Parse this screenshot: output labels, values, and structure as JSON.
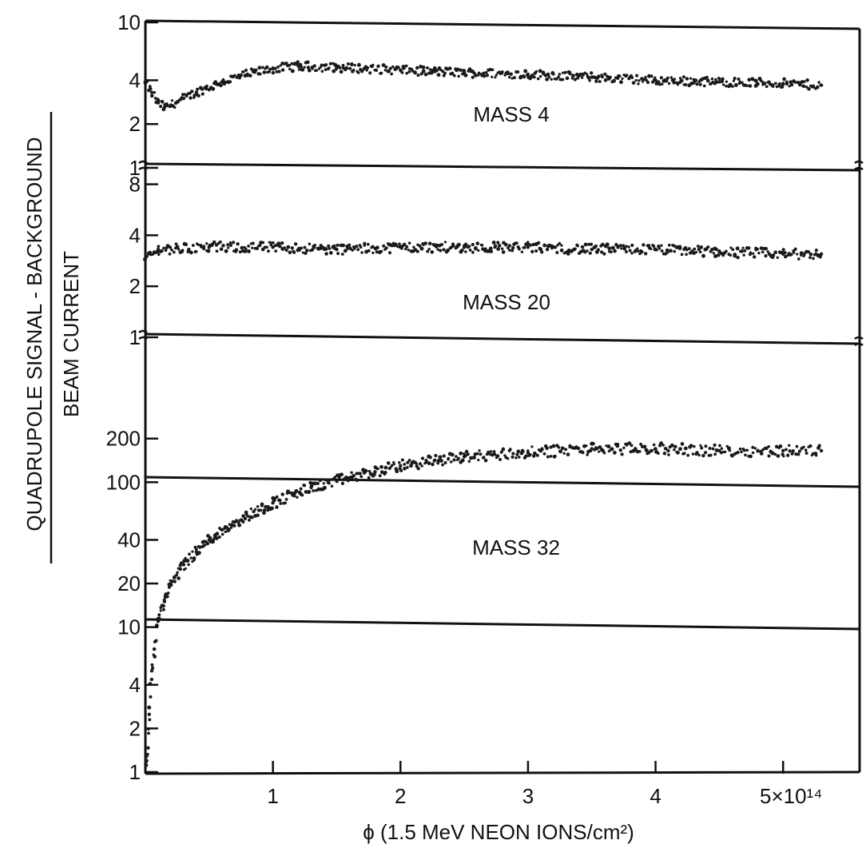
{
  "chart_data": {
    "type": "scatter",
    "ylabel_numerator": "QUADRUPOLE SIGNAL - BACKGROUND",
    "ylabel_denominator": "BEAM CURRENT",
    "xlabel": "ϕ (1.5 MeV NEON IONS/cm²)",
    "xlim": [
      0,
      5.6
    ],
    "x_ticks": [
      {
        "value": 1,
        "label": "1"
      },
      {
        "value": 2,
        "label": "2"
      },
      {
        "value": 3,
        "label": "3"
      },
      {
        "value": 4,
        "label": "4"
      },
      {
        "value": 5,
        "label": "5×10¹⁴"
      }
    ],
    "y_scale": "log",
    "panels": [
      {
        "label": "MASS 4",
        "ylim": [
          1,
          10
        ],
        "y_ticks": [
          {
            "value": 1,
            "label": "1"
          },
          {
            "value": 2,
            "label": "2"
          },
          {
            "value": 4,
            "label": "4"
          },
          {
            "value": 10,
            "label": "10"
          }
        ],
        "series": {
          "x": [
            0.0,
            0.05,
            0.1,
            0.15,
            0.2,
            0.3,
            0.4,
            0.6,
            0.8,
            1.0,
            1.2,
            1.5,
            2.0,
            2.5,
            3.0,
            3.5,
            4.0,
            4.5,
            5.0,
            5.3
          ],
          "y": [
            3.8,
            3.3,
            2.8,
            2.6,
            2.7,
            3.0,
            3.3,
            3.9,
            4.4,
            4.8,
            5.0,
            4.9,
            4.7,
            4.5,
            4.4,
            4.2,
            4.0,
            3.9,
            3.8,
            3.7
          ]
        }
      },
      {
        "label": "MASS 20",
        "ylim": [
          1,
          10
        ],
        "y_ticks": [
          {
            "value": 1,
            "label": "1"
          },
          {
            "value": 2,
            "label": "2"
          },
          {
            "value": 4,
            "label": "4"
          },
          {
            "value": 8,
            "label": "8"
          }
        ],
        "series": {
          "x": [
            0.0,
            0.1,
            0.5,
            1.0,
            1.5,
            2.0,
            2.5,
            3.0,
            3.5,
            4.0,
            4.5,
            5.0,
            5.3
          ],
          "y": [
            2.9,
            3.3,
            3.4,
            3.4,
            3.3,
            3.4,
            3.4,
            3.4,
            3.3,
            3.3,
            3.2,
            3.1,
            3.1
          ]
        }
      },
      {
        "label": "MASS 32",
        "ylim": [
          1,
          1000
        ],
        "y_ticks": [
          {
            "value": 1,
            "label": "1"
          },
          {
            "value": 2,
            "label": "2"
          },
          {
            "value": 4,
            "label": "4"
          },
          {
            "value": 10,
            "label": "10"
          },
          {
            "value": 20,
            "label": "20"
          },
          {
            "value": 40,
            "label": "40"
          },
          {
            "value": 100,
            "label": "100"
          },
          {
            "value": 200,
            "label": "200"
          }
        ],
        "series": {
          "x": [
            0.01,
            0.03,
            0.05,
            0.08,
            0.1,
            0.15,
            0.2,
            0.3,
            0.4,
            0.5,
            0.7,
            1.0,
            1.3,
            1.5,
            1.8,
            2.0,
            2.5,
            3.0,
            3.5,
            4.0,
            4.5,
            5.0,
            5.3
          ],
          "y": [
            1.2,
            2.5,
            5.0,
            8.0,
            11,
            15,
            20,
            27,
            33,
            40,
            53,
            72,
            92,
            102,
            118,
            130,
            150,
            160,
            170,
            170,
            165,
            165,
            165
          ]
        }
      }
    ],
    "grid": false,
    "legend": "none"
  }
}
